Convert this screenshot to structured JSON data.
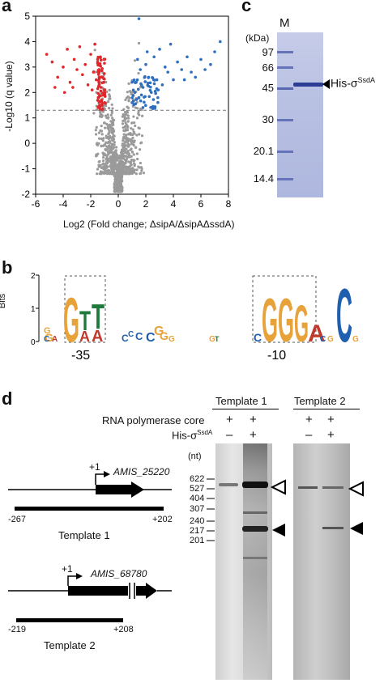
{
  "panel_a": {
    "label": "a",
    "ylabel": "-Log10 (q value)",
    "xlabel": "Log2 (Fold change; ΔsipA/ΔsipAΔssdA)",
    "threshold_y": 1.3,
    "colors": {
      "down": "#e0272b",
      "up": "#2f6fbe",
      "ns": "#9a9a9a"
    },
    "chart_data": {
      "type": "scatter",
      "title": "",
      "xlabel": "Log2 (Fold change; ΔsipA/ΔsipAΔssdA)",
      "ylabel": "-Log10 (q value)",
      "xlim": [
        -6,
        8
      ],
      "ylim": [
        -2,
        5
      ],
      "xticks": [
        -6,
        -4,
        -2,
        0,
        2,
        4,
        6,
        8
      ],
      "yticks": [
        -2,
        -1,
        0,
        1,
        2,
        3,
        4,
        5
      ],
      "series": [
        {
          "points": [
            [
              -5.2,
              3.5
            ],
            [
              -4.8,
              3.2
            ],
            [
              -4.4,
              2.6
            ],
            [
              -4.0,
              3.0
            ],
            [
              -3.7,
              3.7
            ],
            [
              -3.5,
              2.4
            ],
            [
              -3.2,
              3.3
            ],
            [
              -3.0,
              2.9
            ],
            [
              -2.8,
              3.8
            ],
            [
              -2.6,
              2.7
            ],
            [
              -2.4,
              3.1
            ],
            [
              -2.2,
              2.3
            ],
            [
              -2.0,
              3.5
            ],
            [
              -1.9,
              2.1
            ],
            [
              -1.8,
              2.8
            ],
            [
              -1.7,
              3.9
            ],
            [
              -1.6,
              2.5
            ],
            [
              -1.5,
              3.2
            ],
            [
              -1.45,
              1.8
            ],
            [
              -1.4,
              2.9
            ],
            [
              -1.35,
              1.5
            ],
            [
              -1.3,
              3.4
            ],
            [
              -1.25,
              2.2
            ],
            [
              -1.2,
              1.7
            ],
            [
              -1.15,
              2.6
            ],
            [
              -1.1,
              1.9
            ],
            [
              -1.05,
              2.4
            ],
            [
              -1.0,
              1.6
            ],
            [
              -4.6,
              2.2
            ],
            [
              -3.9,
              2.0
            ],
            [
              -3.3,
              2.2
            ]
          ]
        },
        {
          "points": [
            [
              1.0,
              1.6
            ],
            [
              1.2,
              2.0
            ],
            [
              1.3,
              2.4
            ],
            [
              1.5,
              1.8
            ],
            [
              1.6,
              2.9
            ],
            [
              1.8,
              2.2
            ],
            [
              2.0,
              3.1
            ],
            [
              2.2,
              2.6
            ],
            [
              2.4,
              2.0
            ],
            [
              2.6,
              3.4
            ],
            [
              2.8,
              2.5
            ],
            [
              3.0,
              3.7
            ],
            [
              3.2,
              2.3
            ],
            [
              3.4,
              3.0
            ],
            [
              3.6,
              2.8
            ],
            [
              3.8,
              3.9
            ],
            [
              4.0,
              2.5
            ],
            [
              4.3,
              3.2
            ],
            [
              4.6,
              2.9
            ],
            [
              5.0,
              3.4
            ],
            [
              5.3,
              2.8
            ],
            [
              5.6,
              2.6
            ],
            [
              6.0,
              3.3
            ],
            [
              6.3,
              2.9
            ],
            [
              6.7,
              3.1
            ],
            [
              7.0,
              3.6
            ],
            [
              1.4,
              3.3
            ],
            [
              2.1,
              3.6
            ],
            [
              2.9,
              2.1
            ],
            [
              4.8,
              2.5
            ]
          ]
        },
        {
          "points": []
        }
      ]
    },
    "extra_points": [
      [
        7.4,
        4.0
      ],
      [
        1.5,
        4.9
      ]
    ]
  },
  "panel_b": {
    "label": "b",
    "ylabel": "Bits",
    "yticks": [
      "0",
      "1",
      "2"
    ],
    "pos35": "-35",
    "pos10": "-10"
  },
  "panel_c": {
    "label": "c",
    "lane_m": "M",
    "unit": "(kDa)",
    "markers": [
      "97",
      "66",
      "45",
      "30",
      "20.1",
      "14.4"
    ],
    "band_label_main": "His-σ",
    "band_label_sup": "SsdA"
  },
  "panel_d": {
    "label": "d",
    "template1_header": "Template 1",
    "template2_header": "Template 2",
    "row1_label": "RNA polymerase core",
    "row2_label_main": "His-σ",
    "row2_label_sup": "SsdA",
    "row1_signs": [
      "+",
      "+",
      "+",
      "+"
    ],
    "row2_signs": [
      "–",
      "+",
      "–",
      "+"
    ],
    "nt_unit": "(nt)",
    "nt_markers": [
      "622",
      "527",
      "404",
      "307",
      "240",
      "217",
      "201"
    ],
    "gene1": "AMIS_25220",
    "gene2": "AMIS_68780",
    "plus1": "+1",
    "t1_start": "-267",
    "t1_end": "+202",
    "t1_name": "Template 1",
    "t2_start": "-219",
    "t2_end": "+208",
    "t2_name": "Template 2"
  }
}
